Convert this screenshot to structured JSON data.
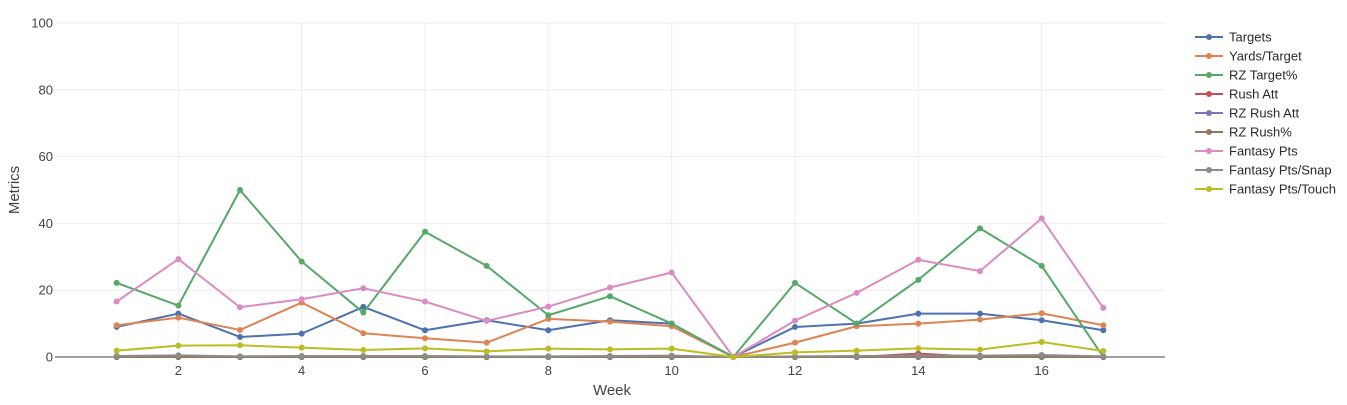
{
  "chart_data": {
    "type": "line",
    "xlabel": "Week",
    "ylabel": "Metrics",
    "xlim": [
      0,
      18
    ],
    "ylim": [
      0,
      100
    ],
    "x_ticks": [
      2,
      4,
      6,
      8,
      10,
      12,
      14,
      16
    ],
    "y_ticks": [
      0,
      20,
      40,
      60,
      80,
      100
    ],
    "grid": true,
    "legend_position": "right",
    "x": [
      1,
      2,
      3,
      4,
      5,
      6,
      7,
      8,
      9,
      10,
      11,
      12,
      13,
      14,
      15,
      16,
      17
    ],
    "series": [
      {
        "name": "Targets",
        "color": "#4c72b0",
        "values": [
          9,
          13,
          6,
          7,
          15,
          8,
          11,
          8,
          11,
          10,
          0,
          9,
          10,
          13,
          13,
          11,
          8
        ]
      },
      {
        "name": "Yards/Target",
        "color": "#dd8452",
        "values": [
          9.5,
          11.8,
          8.1,
          16.3,
          7.1,
          5.6,
          4.3,
          11.4,
          10.6,
          9.2,
          0,
          4.3,
          9.2,
          10,
          11.2,
          13.1,
          9.5
        ]
      },
      {
        "name": "RZ Target%",
        "color": "#55a868",
        "values": [
          22.2,
          15.4,
          50,
          28.6,
          13.3,
          37.5,
          27.3,
          12.5,
          18.2,
          10,
          0,
          22.2,
          10,
          23.1,
          38.5,
          27.3,
          0
        ]
      },
      {
        "name": "Rush Att",
        "color": "#c44e52",
        "values": [
          0,
          0,
          0,
          0,
          0,
          0,
          0,
          0,
          0,
          0,
          0,
          0,
          0,
          1,
          0,
          0,
          0
        ]
      },
      {
        "name": "RZ Rush Att",
        "color": "#8172b3",
        "values": [
          0,
          0,
          0,
          0,
          0,
          0,
          0,
          0,
          0,
          0,
          0,
          0,
          0,
          0,
          0,
          0,
          0
        ]
      },
      {
        "name": "RZ Rush%",
        "color": "#937860",
        "values": [
          0,
          0,
          0,
          0,
          0,
          0,
          0,
          0,
          0,
          0,
          0,
          0,
          0,
          0,
          0,
          0,
          0
        ]
      },
      {
        "name": "Fantasy Pts",
        "color": "#da8bc3",
        "values": [
          16.6,
          29.3,
          14.9,
          17.3,
          20.6,
          16.6,
          10.8,
          15.1,
          20.8,
          25.3,
          0,
          10.9,
          19.2,
          29.1,
          25.7,
          41.5,
          14.7
        ]
      },
      {
        "name": "Fantasy Pts/Snap",
        "color": "#8c8c8c",
        "values": [
          0.3,
          0.5,
          0.2,
          0.3,
          0.3,
          0.3,
          0.2,
          0.2,
          0.3,
          0.4,
          0,
          0.2,
          0.3,
          0.4,
          0.4,
          0.6,
          0.2
        ]
      },
      {
        "name": "Fantasy Pts/Touch",
        "color": "#bcbd22",
        "values": [
          1.9,
          3.4,
          3.5,
          2.8,
          2.1,
          2.6,
          1.7,
          2.5,
          2.3,
          2.5,
          0,
          1.4,
          1.9,
          2.6,
          2.2,
          4.5,
          1.8
        ]
      }
    ]
  }
}
